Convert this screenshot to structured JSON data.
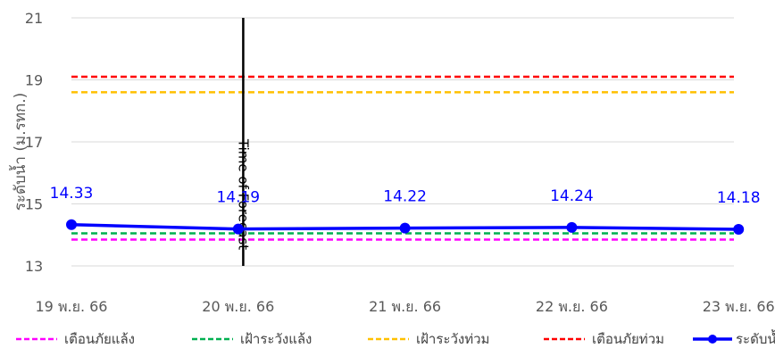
{
  "chart_data": {
    "type": "line",
    "title": "",
    "ylabel": "ระดับน้ำ (ม.รทก.)",
    "xlabel": "",
    "ylim": [
      13,
      21
    ],
    "yticks": [
      13,
      15,
      17,
      19,
      21
    ],
    "y_gridlines": true,
    "categories": [
      "19 พ.ย. 66",
      "20 พ.ย. 66",
      "21 พ.ย. 66",
      "22 พ.ย. 66",
      "23 พ.ย. 66"
    ],
    "series": [
      {
        "name": "ระดับน้ำ",
        "values": [
          14.33,
          14.19,
          14.22,
          14.24,
          14.18
        ],
        "color": "#0000ff",
        "style": "solid",
        "markers": true,
        "data_labels": [
          "14.33",
          "14.19",
          "14.22",
          "14.24",
          "14.18"
        ]
      },
      {
        "name": "เตือนภัยแล้ง",
        "values": [
          13.85,
          13.85,
          13.85,
          13.85,
          13.85
        ],
        "color": "#ff00ff",
        "style": "dashed"
      },
      {
        "name": "เฝ้าระวังแล้ง",
        "values": [
          14.05,
          14.05,
          14.05,
          14.05,
          14.05
        ],
        "color": "#00b050",
        "style": "dashed"
      },
      {
        "name": "เฝ้าระวังท่วม",
        "values": [
          18.6,
          18.6,
          18.6,
          18.6,
          18.6
        ],
        "color": "#ffc000",
        "style": "dashed"
      },
      {
        "name": "เตือนภัยท่วม",
        "values": [
          19.1,
          19.1,
          19.1,
          19.1,
          19.1
        ],
        "color": "#ff0000",
        "style": "dashed"
      }
    ],
    "vertical_marker": {
      "label": "Time of Forecast",
      "x_category_index": 1.03,
      "color": "#000000"
    },
    "legend": {
      "position": "bottom",
      "order": [
        "เตือนภัยแล้ง",
        "เฝ้าระวังแล้ง",
        "เฝ้าระวังท่วม",
        "เตือนภัยท่วม",
        "ระดับน้ำ"
      ]
    }
  }
}
